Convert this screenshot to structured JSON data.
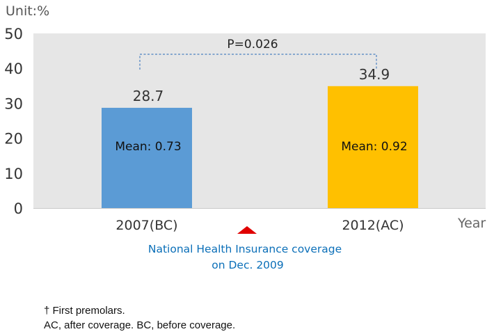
{
  "chart_data": {
    "type": "bar",
    "unit_label": "Unit:%",
    "xlabel": "Year",
    "ylim": [
      0,
      50
    ],
    "yticks": [
      0,
      10,
      20,
      30,
      40,
      50
    ],
    "categories": [
      "2007(BC)",
      "2012(AC)"
    ],
    "values": [
      28.7,
      34.9
    ],
    "value_labels": [
      "28.7",
      "34.9"
    ],
    "mean_labels": [
      "Mean: 0.73",
      "Mean: 0.92"
    ],
    "bar_colors": [
      "#5b9bd5",
      "#ffc000"
    ],
    "plot_background": "#e6e6e6",
    "significance_label": "P=0.026",
    "bracket_color": "#4a7fc0",
    "annotation": {
      "lines": [
        "National Health Insurance coverage",
        "on Dec. 2009"
      ],
      "color": "#0b6fb8",
      "marker_color": "#e00000"
    }
  },
  "footnotes": {
    "line1": "† First premolars.",
    "line2": "AC, after coverage. BC, before coverage."
  }
}
